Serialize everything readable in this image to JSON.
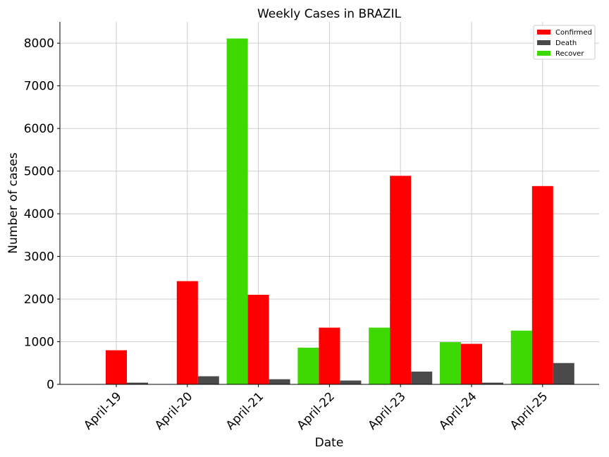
{
  "chart_data": {
    "type": "bar",
    "title": "Weekly Cases in BRAZIL",
    "xlabel": "Date",
    "ylabel": "Number of cases",
    "categories": [
      "April-19",
      "April-20",
      "April-21",
      "April-22",
      "April-23",
      "April-24",
      "April-25"
    ],
    "series": [
      {
        "name": "Recover",
        "color": "#3dd900",
        "values": [
          0,
          0,
          8110,
          860,
          1330,
          990,
          1260
        ]
      },
      {
        "name": "Confirmed",
        "color": "#ff0000",
        "values": [
          800,
          2420,
          2100,
          1330,
          4890,
          950,
          4650
        ]
      },
      {
        "name": "Death",
        "color": "#4a4a4a",
        "values": [
          40,
          190,
          120,
          90,
          300,
          40,
          500
        ]
      }
    ],
    "legend_order": [
      "Confirmed",
      "Death",
      "Recover"
    ],
    "ylim": [
      0,
      8500
    ],
    "yticks": [
      0,
      1000,
      2000,
      3000,
      4000,
      5000,
      6000,
      7000,
      8000
    ],
    "grid": true,
    "legend_position": "top-right"
  }
}
